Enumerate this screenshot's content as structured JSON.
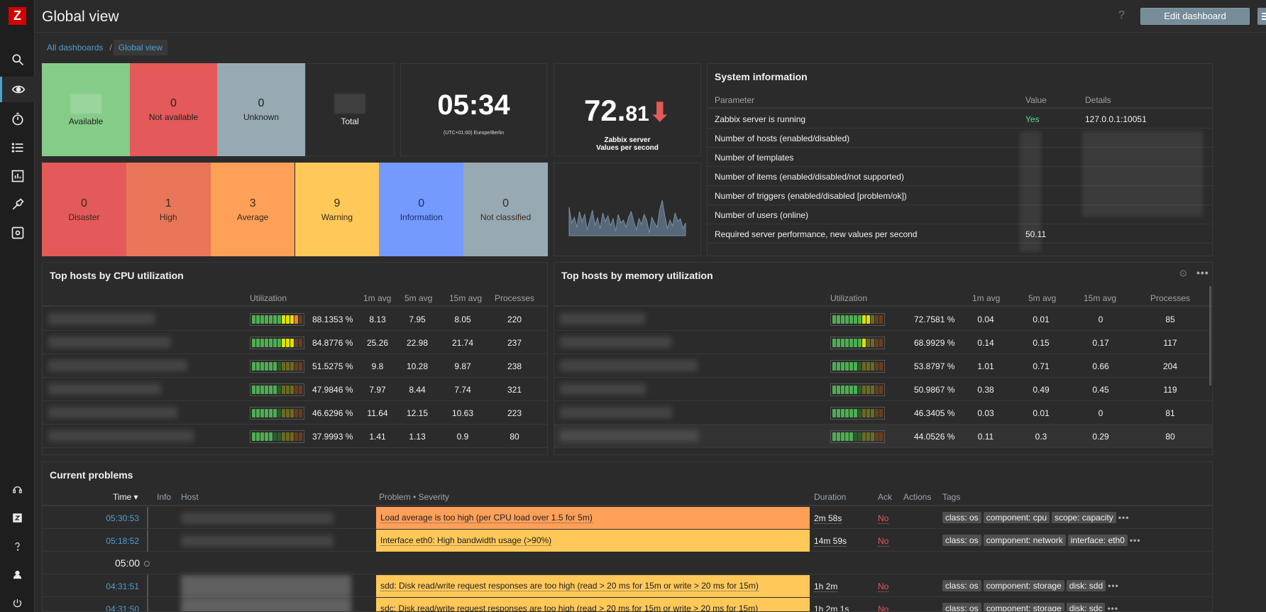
{
  "header": {
    "title": "Global view",
    "help": "?",
    "edit_dashboard": "Edit dashboard"
  },
  "breadcrumb": {
    "all_dashboards": "All dashboards",
    "separator": "/",
    "current": "Global view"
  },
  "host_availability": {
    "available_label": "Available",
    "not_available_value": "0",
    "not_available_label": "Not available",
    "unknown_value": "0",
    "unknown_label": "Unknown",
    "total_label": "Total"
  },
  "clock": {
    "time": "05:34",
    "timezone": "(UTC+01:00) Europe/Berlin"
  },
  "item_value": {
    "integer": "72.",
    "decimal": "81",
    "arrow": "⬇",
    "desc_line1": "Zabbix server",
    "desc_line2": "Values per second"
  },
  "system_info": {
    "title": "System information",
    "col_parameter": "Parameter",
    "col_value": "Value",
    "col_details": "Details",
    "rows": [
      {
        "param": "Zabbix server is running",
        "value": "Yes",
        "details": "127.0.0.1:10051"
      },
      {
        "param": "Number of hosts (enabled/disabled)",
        "value": "",
        "details": ""
      },
      {
        "param": "Number of templates",
        "value": "",
        "details": ""
      },
      {
        "param": "Number of items (enabled/disabled/not supported)",
        "value": "",
        "details": ""
      },
      {
        "param": "Number of triggers (enabled/disabled [problem/ok])",
        "value": "",
        "details": ""
      },
      {
        "param": "Number of users (online)",
        "value": "",
        "details": ""
      },
      {
        "param": "Required server performance, new values per second",
        "value": "50.11",
        "details": ""
      }
    ]
  },
  "severity": [
    {
      "value": "0",
      "label": "Disaster",
      "color": "#e45959"
    },
    {
      "value": "1",
      "label": "High",
      "color": "#e97659"
    },
    {
      "value": "3",
      "label": "Average",
      "color": "#ffa059"
    },
    {
      "value": "9",
      "label": "Warning",
      "color": "#ffc859"
    },
    {
      "value": "0",
      "label": "Information",
      "color": "#7499ff"
    },
    {
      "value": "0",
      "label": "Not classified",
      "color": "#97aab3"
    }
  ],
  "cpu": {
    "title": "Top hosts by CPU utilization",
    "cols": {
      "util": "Utilization",
      "m1": "1m avg",
      "m5": "5m avg",
      "m15": "15m avg",
      "proc": "Processes"
    },
    "rows": [
      {
        "util": "88.1353 %",
        "level": 0.88,
        "m1": "8.13",
        "m5": "7.95",
        "m15": "8.05",
        "proc": "220"
      },
      {
        "util": "84.8776 %",
        "level": 0.85,
        "m1": "25.26",
        "m5": "22.98",
        "m15": "21.74",
        "proc": "237"
      },
      {
        "util": "51.5275 %",
        "level": 0.52,
        "m1": "9.8",
        "m5": "10.28",
        "m15": "9.87",
        "proc": "238"
      },
      {
        "util": "47.9846 %",
        "level": 0.48,
        "m1": "7.97",
        "m5": "8.44",
        "m15": "7.74",
        "proc": "321"
      },
      {
        "util": "46.6296 %",
        "level": 0.47,
        "m1": "11.64",
        "m5": "12.15",
        "m15": "10.63",
        "proc": "223"
      },
      {
        "util": "37.9993 %",
        "level": 0.38,
        "m1": "1.41",
        "m5": "1.13",
        "m15": "0.9",
        "proc": "80"
      }
    ]
  },
  "mem": {
    "title": "Top hosts by memory utilization",
    "cols": {
      "util": "Utilization",
      "m1": "1m avg",
      "m5": "5m avg",
      "m15": "15m avg",
      "proc": "Processes"
    },
    "rows": [
      {
        "util": "72.7581 %",
        "level": 0.73,
        "m1": "0.04",
        "m5": "0.01",
        "m15": "0",
        "proc": "85"
      },
      {
        "util": "68.9929 %",
        "level": 0.69,
        "m1": "0.14",
        "m5": "0.15",
        "m15": "0.17",
        "proc": "117"
      },
      {
        "util": "53.8797 %",
        "level": 0.54,
        "m1": "1.01",
        "m5": "0.71",
        "m15": "0.66",
        "proc": "204"
      },
      {
        "util": "50.9867 %",
        "level": 0.51,
        "m1": "0.38",
        "m5": "0.49",
        "m15": "0.45",
        "proc": "119"
      },
      {
        "util": "46.3405 %",
        "level": 0.46,
        "m1": "0.03",
        "m5": "0.01",
        "m15": "0",
        "proc": "81"
      },
      {
        "util": "44.0526 %",
        "level": 0.44,
        "m1": "0.11",
        "m5": "0.3",
        "m15": "0.29",
        "proc": "80"
      }
    ]
  },
  "problems": {
    "title": "Current problems",
    "cols": {
      "time": "Time ▾",
      "info": "Info",
      "host": "Host",
      "problem": "Problem • Severity",
      "duration": "Duration",
      "ack": "Ack",
      "actions": "Actions",
      "tags": "Tags"
    },
    "rows": [
      {
        "time": "05:30:53",
        "problem": "Load average is too high (per CPU load over 1.5 for 5m)",
        "color": "#ffa059",
        "duration": "2m 58s",
        "ack": "No",
        "tags": [
          "class: os",
          "component: cpu",
          "scope: capacity"
        ]
      },
      {
        "time": "05:18:52",
        "problem": "Interface eth0: High bandwidth usage (>90%)",
        "color": "#ffc859",
        "duration": "14m 59s",
        "ack": "No",
        "tags": [
          "class: os",
          "component: network",
          "interface: eth0"
        ]
      },
      {
        "time": "04:31:51",
        "problem": "sdd: Disk read/write request responses are too high (read > 20 ms for 15m or write > 20 ms for 15m)",
        "color": "#ffc859",
        "duration": "1h 2m",
        "ack": "No",
        "tags": [
          "class: os",
          "component: storage",
          "disk: sdd"
        ]
      },
      {
        "time": "04:31:50",
        "problem": "sdc: Disk read/write request responses are too high (read > 20 ms for 15m or write > 20 ms for 15m)",
        "color": "#ffc859",
        "duration": "1h 2m 1s",
        "ack": "No",
        "tags": [
          "class: os",
          "component: storage",
          "disk: sdc"
        ]
      }
    ],
    "timeline_marker": "05:00",
    "more": "•••"
  }
}
